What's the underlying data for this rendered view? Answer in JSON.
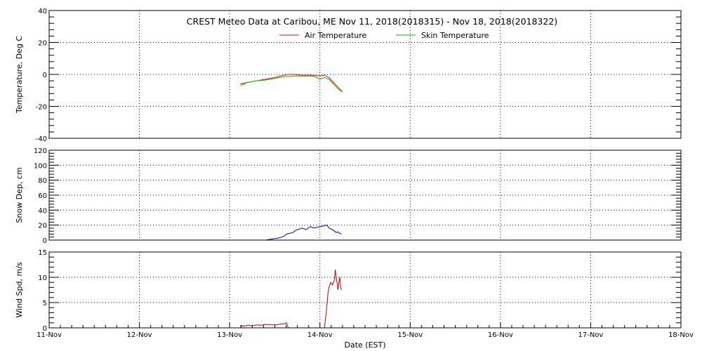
{
  "chart_data": {
    "title": "CREST Meteo Data at Caribou, ME   Nov 11, 2018(2018315) - Nov 18, 2018(2018322)",
    "xlabel": "Date (EST)",
    "x_range_days": [
      0,
      7
    ],
    "x_tick_labels": [
      "11-Nov",
      "12-Nov",
      "13-Nov",
      "14-Nov",
      "15-Nov",
      "16-Nov",
      "17-Nov",
      "18-Nov"
    ],
    "grid": true,
    "panels": [
      {
        "type": "line",
        "ylabel": "Temperature, Deg C",
        "ylim": [
          -40,
          40
        ],
        "yticks": [
          -40,
          -20,
          0,
          20,
          40
        ],
        "legend_position": "top-center",
        "series": [
          {
            "name": "Air Temperature",
            "color": "#ff0000",
            "x": [
              2.12,
              2.2,
              2.3,
              2.4,
              2.5,
              2.6,
              2.65,
              2.7,
              2.8,
              2.9,
              3.0,
              3.05,
              3.1,
              3.15,
              3.2,
              3.25
            ],
            "y": [
              -6,
              -5,
              -4,
              -3,
              -2,
              -0.5,
              0,
              0,
              -0.5,
              -0.5,
              -1,
              -0.5,
              -2,
              -5,
              -8,
              -11
            ]
          },
          {
            "name": "Skin Temperature",
            "color": "#00c000",
            "x": [
              2.12,
              2.2,
              2.3,
              2.4,
              2.5,
              2.6,
              2.7,
              2.8,
              2.9,
              2.95,
              3.0,
              3.05,
              3.1,
              3.15,
              3.2,
              3.25
            ],
            "y": [
              -7,
              -5,
              -4,
              -3.5,
              -2.5,
              -1.5,
              -1,
              -1,
              -1,
              -1.5,
              -3,
              -2,
              -3,
              -6,
              -9,
              -11
            ]
          }
        ]
      },
      {
        "type": "line",
        "ylabel": "Snow Dep, cm",
        "ylim": [
          0,
          120
        ],
        "yticks": [
          0,
          20,
          40,
          60,
          80,
          100,
          120
        ],
        "series": [
          {
            "color": "#0000c0",
            "x": [
              2.05,
              2.2,
              2.4,
              2.45,
              2.5,
              2.55,
              2.6,
              2.63,
              2.7,
              2.72,
              2.75,
              2.78,
              2.8,
              2.85,
              2.88,
              2.9,
              2.93,
              3.08,
              3.1,
              3.12,
              3.14,
              3.16,
              3.18,
              3.2,
              3.22,
              3.24
            ],
            "y": [
              0,
              0,
              0,
              1,
              2,
              3,
              5,
              8,
              10,
              12,
              14,
              15,
              16,
              14,
              17,
              18,
              16,
              20,
              16,
              15,
              14,
              12,
              10,
              11,
              9,
              8
            ]
          }
        ]
      },
      {
        "type": "line",
        "ylabel": "Wind Spd, m/s",
        "ylim": [
          0,
          15
        ],
        "yticks": [
          0,
          5,
          10,
          15
        ],
        "series": [
          {
            "color": "#c00000",
            "x": [
              2.0,
              2.12,
              2.13,
              2.15,
              2.2,
              2.25,
              2.3,
              2.35,
              2.4,
              2.45,
              2.5,
              2.55,
              2.6,
              2.62,
              2.63,
              2.64,
              2.65,
              3.05,
              3.07,
              3.08,
              3.09,
              3.1,
              3.12,
              3.14,
              3.16,
              3.17,
              3.18,
              3.19,
              3.2,
              3.21,
              3.22,
              3.23,
              3.24
            ],
            "y": [
              0,
              0,
              0.5,
              0.3,
              0.5,
              0.4,
              0.6,
              0.5,
              0.7,
              0.6,
              0.6,
              0.7,
              0.8,
              0.9,
              1.0,
              0.5,
              0,
              0,
              3,
              5,
              7,
              8,
              9,
              8.5,
              9.5,
              11.5,
              10,
              9,
              7.5,
              9,
              10,
              8,
              7.5
            ]
          }
        ]
      }
    ]
  }
}
